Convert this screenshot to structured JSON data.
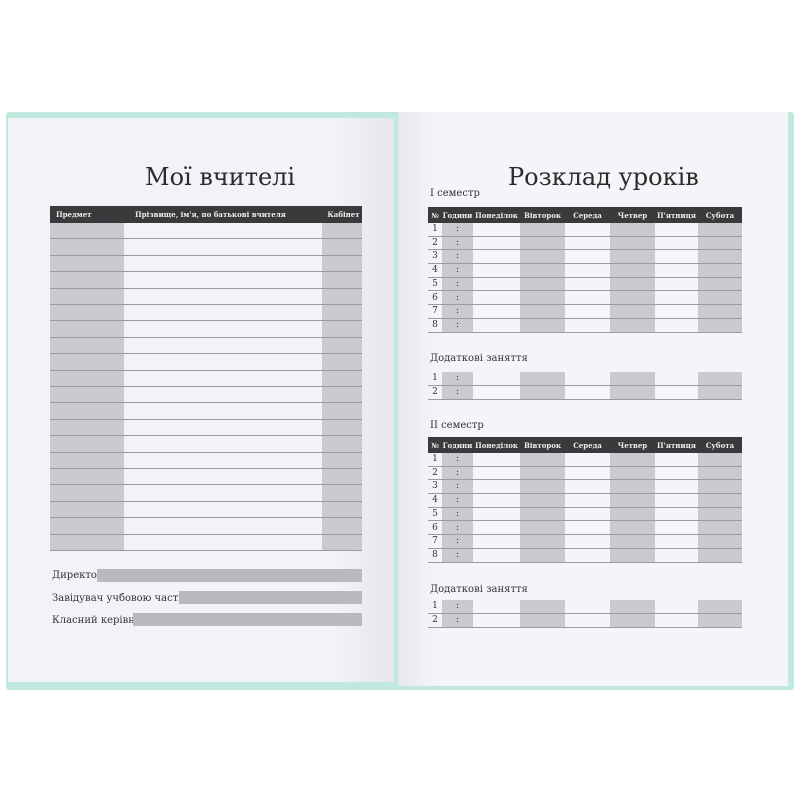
{
  "left": {
    "title": "Мої вчителі",
    "headers": [
      "Предмет",
      "Прізвище, ім'я, по батькові вчителя",
      "Кабінет"
    ],
    "signatures": [
      "Директор",
      "Завідувач учбовою частиною",
      "Класний керівник"
    ]
  },
  "right": {
    "title": "Розклад уроків",
    "semesters": [
      "I семестр",
      "II семестр"
    ],
    "headers": [
      "№",
      "Години",
      "Понеділок",
      "Вівторок",
      "Середа",
      "Четвер",
      "П'ятниця",
      "Субота"
    ],
    "lesson_numbers": [
      "1",
      "2",
      "3",
      "4",
      "5",
      "6",
      "7",
      "8"
    ],
    "time_sep": ":",
    "extra_label": "Додаткові заняття",
    "extra_numbers": [
      "1",
      "2"
    ]
  }
}
